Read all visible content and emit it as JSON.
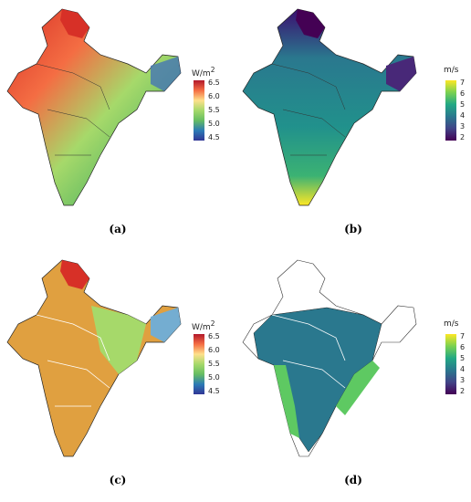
{
  "panels": [
    {
      "caption": "(a)",
      "unit": "W/m",
      "unit_sup": "2",
      "ticks": [
        "6.5",
        "6.0",
        "5.5",
        "5.0",
        "4.5"
      ],
      "colors": [
        "#b2182b",
        "#f46d43",
        "#fee08b",
        "#a6d96a",
        "#66bd63",
        "#2c7bb6",
        "#313695"
      ]
    },
    {
      "caption": "(b)",
      "unit": "m/s",
      "unit_sup": "",
      "ticks": [
        "7",
        "6",
        "5",
        "4",
        "3",
        "2"
      ],
      "colors": [
        "#fde725",
        "#7ad151",
        "#22a884",
        "#2a788e",
        "#414487",
        "#440154"
      ]
    },
    {
      "caption": "(c)",
      "unit": "W/m",
      "unit_sup": "2",
      "ticks": [
        "6.5",
        "6.0",
        "5.5",
        "5.0",
        "4.5"
      ],
      "colors": [
        "#b2182b",
        "#f46d43",
        "#fee08b",
        "#a6d96a",
        "#66bd63",
        "#2c7bb6",
        "#313695"
      ]
    },
    {
      "caption": "(d)",
      "unit": "m/s",
      "unit_sup": "",
      "ticks": [
        "7",
        "6",
        "5",
        "4",
        "3",
        "2"
      ],
      "colors": [
        "#fde725",
        "#7ad151",
        "#22a884",
        "#2a788e",
        "#414487",
        "#440154"
      ]
    }
  ]
}
